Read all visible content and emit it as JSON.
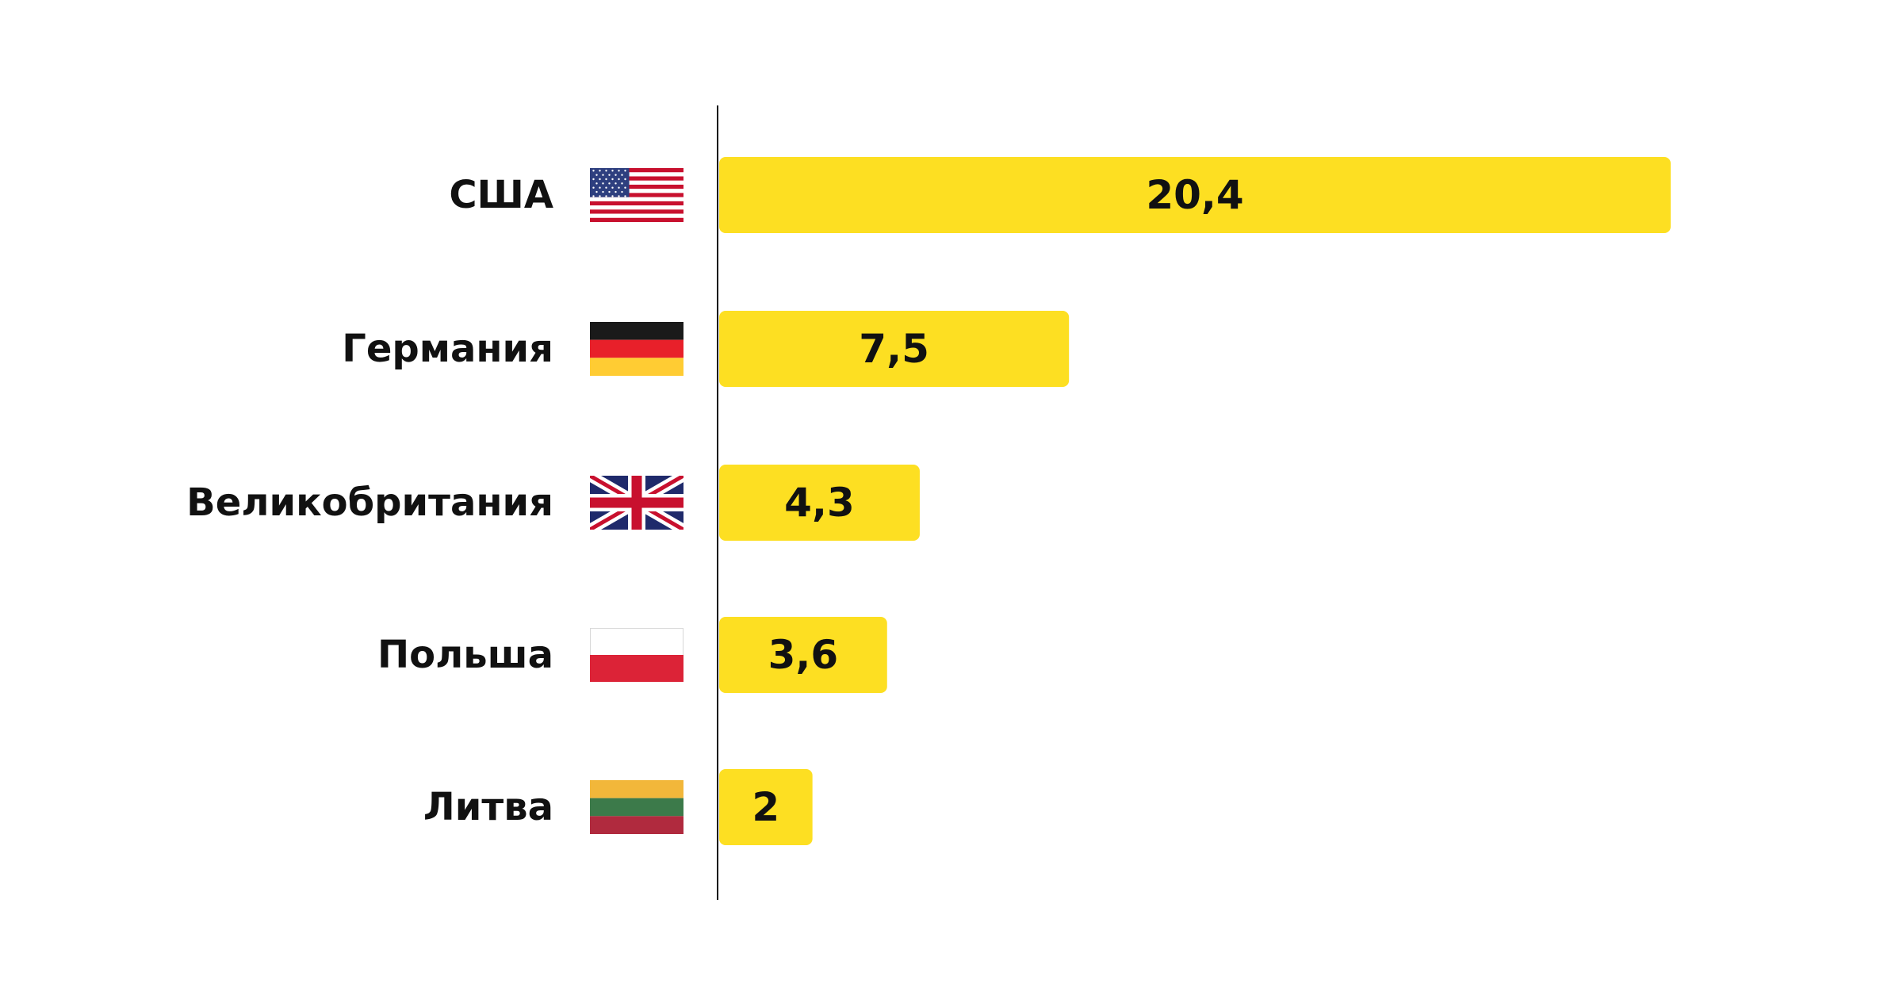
{
  "chart_data": {
    "type": "bar",
    "orientation": "horizontal",
    "categories": [
      "США",
      "Германия",
      "Великобритания",
      "Польша",
      "Литва"
    ],
    "values": [
      20.4,
      7.5,
      4.3,
      3.6,
      2
    ],
    "value_labels": [
      "20,4",
      "7,5",
      "4,3",
      "3,6",
      "2"
    ],
    "flags": [
      "us-flag-icon",
      "germany-flag-icon",
      "uk-flag-icon",
      "poland-flag-icon",
      "lithuania-flag-icon"
    ],
    "title": "",
    "xlabel": "",
    "ylabel": "",
    "xlim": [
      0,
      20.4
    ],
    "grid": false,
    "legend": "none",
    "colors": {
      "bar": "#FDDF22",
      "axis": "#111111",
      "text": "#111111"
    }
  }
}
